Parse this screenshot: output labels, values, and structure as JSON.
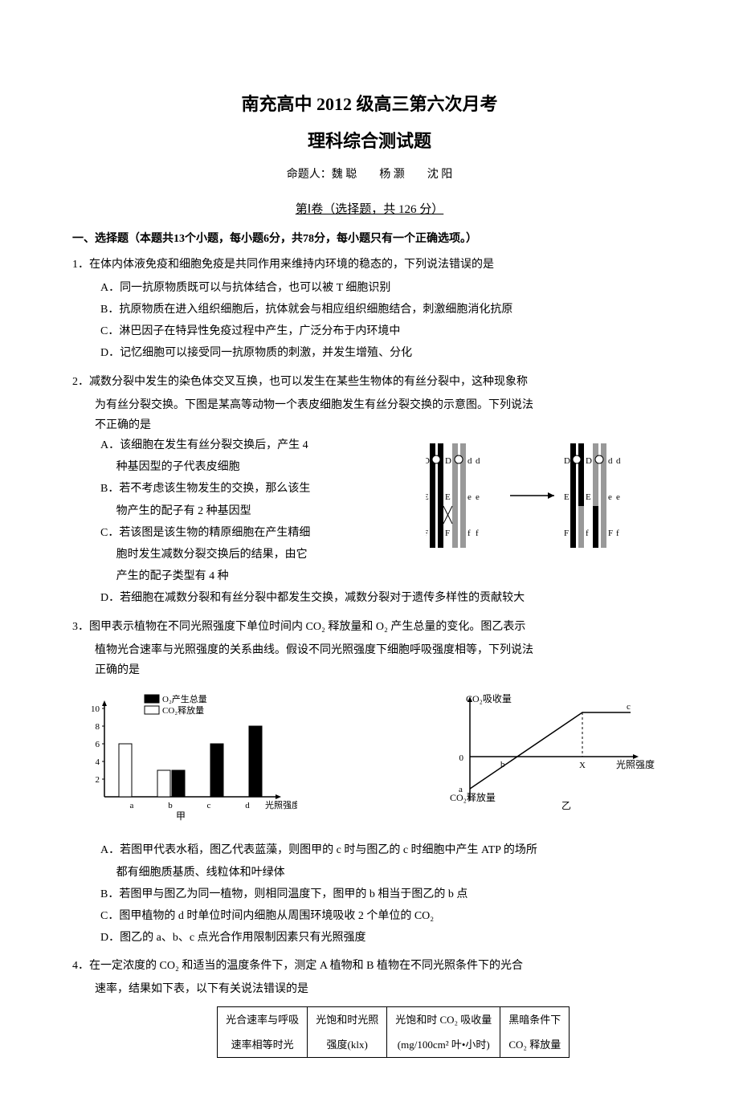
{
  "header": {
    "title_main": "南充高中 2012 级高三第六次月考",
    "title_sub": "理科综合测试题",
    "authors": "命题人：魏 聪　　杨 灏　　沈 阳",
    "section": "第Ⅰ卷（选择题，共 126 分）",
    "instructions": "一、选择题（本题共13个小题，每小题6分，共78分，每小题只有一个正确选项。）"
  },
  "q1": {
    "stem": "1．在体内体液免疫和细胞免疫是共同作用来维持内环境的稳态的，下列说法错误的是",
    "A": "A．同一抗原物质既可以与抗体结合，也可以被 T 细胞识别",
    "B": "B．抗原物质在进入组织细胞后，抗体就会与相应组织细胞结合，刺激细胞消化抗原",
    "C": "C．淋巴因子在特异性免疫过程中产生，广泛分布于内环境中",
    "D": "D．记忆细胞可以接受同一抗原物质的刺激，并发生增殖、分化"
  },
  "q2": {
    "stem1": "2．减数分裂中发生的染色体交叉互换，也可以发生在某些生物体的有丝分裂中，这种现象称",
    "stem2": "为有丝分裂交换。下图是某高等动物一个表皮细胞发生有丝分裂交换的示意图。下列说法",
    "stem3": "不正确的是",
    "A1": "A．该细胞在发生有丝分裂交换后，产生 4",
    "A2": "种基因型的子代表皮细胞",
    "B1": "B．若不考虑该生物发生的交换，那么该生",
    "B2": "物产生的配子有 2 种基因型",
    "C1": "C．若该图是该生物的精原细胞在产生精细",
    "C2": "胞时发生减数分裂交换后的结果，由它",
    "C3": "产生的配子类型有 4 种",
    "D": "D．若细胞在减数分裂和有丝分裂中都发生交换，减数分裂对于遗传多样性的贡献较大",
    "diagram": {
      "labels": [
        "D",
        "D",
        "d",
        "d",
        "E",
        "E",
        "e",
        "e",
        "F",
        "F",
        "f",
        "f"
      ],
      "colors": {
        "black": "#000000",
        "gray": "#999999",
        "white": "#ffffff"
      }
    }
  },
  "q3": {
    "stem1": "3．图甲表示植物在不同光照强度下单位时间内 CO₂ 释放量和 O₂ 产生总量的变化。图乙表示",
    "stem2": "植物光合速率与光照强度的关系曲线。假设不同光照强度下细胞呼吸强度相等，下列说法",
    "stem3": "正确的是",
    "chart_left": {
      "type": "bar",
      "legend": [
        "O₂产生总量",
        "CO₂释放量"
      ],
      "legend_colors": [
        "#000000",
        "#ffffff"
      ],
      "categories": [
        "a",
        "b",
        "c",
        "d"
      ],
      "xlabel": "光照强度",
      "caption": "甲",
      "ylim": [
        0,
        10
      ],
      "yticks": [
        2,
        4,
        6,
        8,
        10
      ],
      "o2_values": [
        0,
        3,
        6,
        8
      ],
      "co2_values": [
        6,
        3,
        0,
        0
      ],
      "bar_border": "#000000"
    },
    "chart_right": {
      "type": "line",
      "ylabel_top": "CO₂吸收量",
      "ylabel_bottom": "CO₂释放量",
      "xlabel": "光照强度",
      "caption": "乙",
      "points": [
        "a",
        "b",
        "c",
        "X"
      ],
      "line_color": "#000000"
    },
    "A1": "A．若图甲代表水稻，图乙代表蓝藻，则图甲的 c 时与图乙的 c 时细胞中产生 ATP 的场所",
    "A2": "都有细胞质基质、线粒体和叶绿体",
    "B": "B．若图甲与图乙为同一植物，则相同温度下，图甲的 b 相当于图乙的 b 点",
    "C": "C．图甲植物的 d 时单位时间内细胞从周围环境吸收 2 个单位的 CO₂",
    "D": "D．图乙的 a、b、c 点光合作用限制因素只有光照强度"
  },
  "q4": {
    "stem1": "4．在一定浓度的 CO₂ 和适当的温度条件下，测定 A 植物和 B 植物在不同光照条件下的光合",
    "stem2": "速率，结果如下表，以下有关说法错误的是",
    "table": {
      "headers_row1": [
        "",
        "光合速率与呼吸",
        "光饱和时光照",
        "光饱和时 CO₂ 吸收量",
        "黑暗条件下"
      ],
      "headers_row2": [
        "",
        "速率相等时光",
        "强度(klx)",
        "(mg/100cm² 叶•小时)",
        "CO₂ 释放量"
      ]
    }
  }
}
